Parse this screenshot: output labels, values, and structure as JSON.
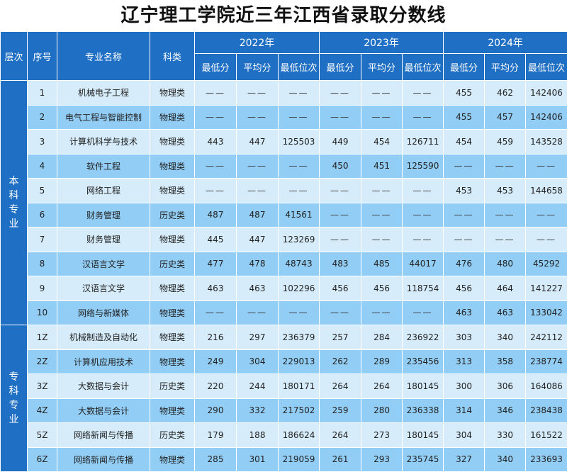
{
  "title": "辽宁理工学院近三年江西省录取分数线",
  "headers": {
    "level": "层次",
    "seq": "序号",
    "major": "专业名称",
    "category": "科类",
    "years": [
      "2022年",
      "2023年",
      "2024年"
    ],
    "sub": [
      "最低分",
      "平均分",
      "最低位次"
    ]
  },
  "groups": [
    {
      "level": "本科专业",
      "rows": [
        {
          "seq": "1",
          "major": "机械电子工程",
          "cat": "物理类",
          "v": [
            "——",
            "——",
            "——",
            "——",
            "——",
            "——",
            "455",
            "462",
            "142406"
          ]
        },
        {
          "seq": "2",
          "major": "电气工程与智能控制",
          "cat": "物理类",
          "v": [
            "——",
            "——",
            "——",
            "——",
            "——",
            "——",
            "455",
            "457",
            "142406"
          ]
        },
        {
          "seq": "3",
          "major": "计算机科学与技术",
          "cat": "物理类",
          "v": [
            "443",
            "447",
            "125503",
            "449",
            "454",
            "126711",
            "454",
            "459",
            "143528"
          ]
        },
        {
          "seq": "4",
          "major": "软件工程",
          "cat": "物理类",
          "v": [
            "——",
            "——",
            "——",
            "450",
            "451",
            "125590",
            "——",
            "——",
            "——"
          ]
        },
        {
          "seq": "5",
          "major": "网络工程",
          "cat": "物理类",
          "v": [
            "——",
            "——",
            "——",
            "——",
            "——",
            "——",
            "453",
            "453",
            "144658"
          ]
        },
        {
          "seq": "6",
          "major": "财务管理",
          "cat": "历史类",
          "v": [
            "487",
            "487",
            "41561",
            "——",
            "——",
            "——",
            "——",
            "——",
            "——"
          ]
        },
        {
          "seq": "7",
          "major": "财务管理",
          "cat": "物理类",
          "v": [
            "445",
            "447",
            "123269",
            "——",
            "——",
            "——",
            "——",
            "——",
            "——"
          ]
        },
        {
          "seq": "8",
          "major": "汉语言文学",
          "cat": "历史类",
          "v": [
            "477",
            "478",
            "48743",
            "483",
            "485",
            "44017",
            "476",
            "480",
            "45292"
          ]
        },
        {
          "seq": "9",
          "major": "汉语言文学",
          "cat": "物理类",
          "v": [
            "463",
            "463",
            "102296",
            "456",
            "456",
            "118754",
            "456",
            "464",
            "141227"
          ]
        },
        {
          "seq": "10",
          "major": "网络与新媒体",
          "cat": "物理类",
          "v": [
            "——",
            "——",
            "——",
            "——",
            "——",
            "——",
            "463",
            "463",
            "133042"
          ]
        }
      ]
    },
    {
      "level": "专科专业",
      "rows": [
        {
          "seq": "1Z",
          "major": "机械制造及自动化",
          "cat": "物理类",
          "v": [
            "216",
            "297",
            "236379",
            "257",
            "284",
            "236922",
            "303",
            "340",
            "242112"
          ]
        },
        {
          "seq": "2Z",
          "major": "计算机应用技术",
          "cat": "物理类",
          "v": [
            "249",
            "304",
            "229013",
            "262",
            "289",
            "235456",
            "313",
            "358",
            "238774"
          ]
        },
        {
          "seq": "3Z",
          "major": "大数据与会计",
          "cat": "历史类",
          "v": [
            "220",
            "244",
            "180171",
            "264",
            "264",
            "180145",
            "300",
            "306",
            "164086"
          ]
        },
        {
          "seq": "4Z",
          "major": "大数据与会计",
          "cat": "物理类",
          "v": [
            "290",
            "332",
            "217502",
            "259",
            "280",
            "236338",
            "314",
            "346",
            "238438"
          ]
        },
        {
          "seq": "5Z",
          "major": "网络新闻与传播",
          "cat": "历史类",
          "v": [
            "179",
            "188",
            "186624",
            "264",
            "273",
            "180145",
            "304",
            "330",
            "161522"
          ]
        },
        {
          "seq": "6Z",
          "major": "网络新闻与传播",
          "cat": "物理类",
          "v": [
            "285",
            "301",
            "219059",
            "261",
            "293",
            "235745",
            "327",
            "340",
            "233693"
          ]
        }
      ]
    }
  ]
}
